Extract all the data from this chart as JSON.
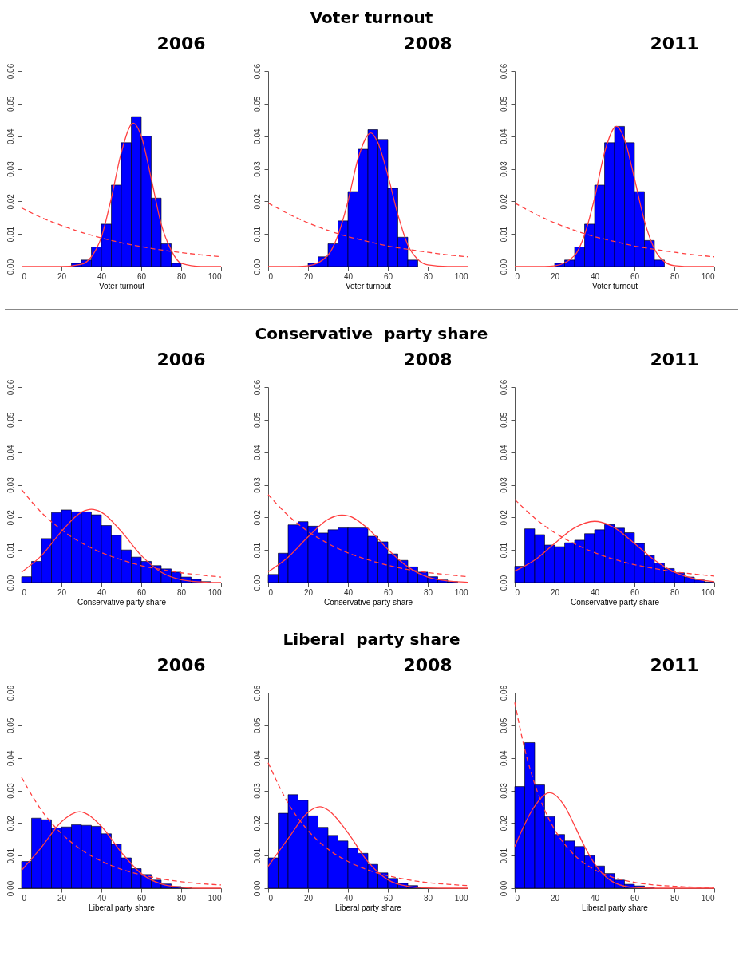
{
  "chart_data": [
    {
      "type": "other",
      "title": "Voter turnout"
    },
    {
      "type": "histogram",
      "title": "2006",
      "xlabel": "Voter turnout",
      "xlim": [
        0,
        100
      ],
      "xticks": [
        0,
        20,
        40,
        60,
        80,
        100
      ],
      "ylim": [
        0,
        0.06
      ],
      "yticks": [
        {
          "value": 0,
          "label": "0.00"
        },
        {
          "value": 0.01,
          "label": "0.01"
        },
        {
          "value": 0.02,
          "label": "0.02"
        },
        {
          "value": 0.03,
          "label": "0.03"
        },
        {
          "value": 0.04,
          "label": "0.04"
        },
        {
          "value": 0.05,
          "label": "0.05"
        },
        {
          "value": 0.06,
          "label": "0.06"
        }
      ],
      "series": [
        {
          "type": "histogram",
          "color": "#0000ff",
          "bins": [
            0,
            5,
            10,
            15,
            20,
            25,
            30,
            35,
            40,
            45,
            50,
            55,
            60,
            65,
            70,
            75,
            80,
            85,
            90,
            95,
            100
          ],
          "values": [
            0,
            0,
            0,
            0,
            0,
            0.001,
            0.002,
            0.006,
            0.013,
            0.025,
            0.038,
            0.046,
            0.04,
            0.021,
            0.007,
            0.001,
            0,
            0,
            0,
            0
          ]
        },
        {
          "type": "line",
          "color": "#ff4040",
          "line_style": "solid",
          "x": [
            0,
            20,
            30,
            35,
            40,
            45,
            50,
            56,
            60,
            65,
            70,
            75,
            80,
            90,
            100
          ],
          "values": [
            0,
            0,
            0.0007,
            0.003,
            0.009,
            0.021,
            0.035,
            0.044,
            0.04,
            0.027,
            0.013,
            0.005,
            0.001,
            0,
            0
          ]
        },
        {
          "type": "line",
          "color": "#ff4040",
          "line_style": "dashed",
          "x": [
            0,
            10,
            20,
            30,
            40,
            50,
            60,
            70,
            80,
            90,
            100
          ],
          "values": [
            0.018,
            0.015,
            0.0126,
            0.0105,
            0.0088,
            0.0073,
            0.0061,
            0.0051,
            0.0043,
            0.0036,
            0.003
          ]
        }
      ]
    },
    {
      "type": "histogram",
      "title": "2008",
      "xlabel": "Voter turnout",
      "xlim": [
        0,
        100
      ],
      "xticks": [
        0,
        20,
        40,
        60,
        80,
        100
      ],
      "ylim": [
        0,
        0.06
      ],
      "yticks": [
        {
          "value": 0,
          "label": "0.00"
        },
        {
          "value": 0.01,
          "label": "0.01"
        },
        {
          "value": 0.02,
          "label": "0.02"
        },
        {
          "value": 0.03,
          "label": "0.03"
        },
        {
          "value": 0.04,
          "label": "0.04"
        },
        {
          "value": 0.05,
          "label": "0.05"
        },
        {
          "value": 0.06,
          "label": "0.06"
        }
      ],
      "series": [
        {
          "type": "histogram",
          "color": "#0000ff",
          "bins": [
            0,
            5,
            10,
            15,
            20,
            25,
            30,
            35,
            40,
            45,
            50,
            55,
            60,
            65,
            70,
            75,
            80,
            85,
            90,
            95,
            100
          ],
          "values": [
            0,
            0,
            0,
            0,
            0.001,
            0.003,
            0.007,
            0.014,
            0.023,
            0.036,
            0.042,
            0.039,
            0.024,
            0.009,
            0.002,
            0,
            0,
            0,
            0,
            0
          ]
        },
        {
          "type": "line",
          "color": "#ff4040",
          "line_style": "solid",
          "x": [
            0,
            15,
            20,
            30,
            35,
            40,
            45,
            51.5,
            55,
            60,
            65,
            70,
            75,
            80,
            90,
            100
          ],
          "values": [
            0,
            0,
            0.0002,
            0.0035,
            0.0096,
            0.02,
            0.033,
            0.041,
            0.038,
            0.028,
            0.016,
            0.0066,
            0.0022,
            0.0005,
            0,
            0
          ]
        },
        {
          "type": "line",
          "color": "#ff4040",
          "line_style": "dashed",
          "x": [
            0,
            10,
            20,
            30,
            40,
            50,
            60,
            70,
            80,
            90,
            100
          ],
          "values": [
            0.0195,
            0.0162,
            0.0134,
            0.0111,
            0.0092,
            0.0077,
            0.0063,
            0.0053,
            0.0044,
            0.0036,
            0.003
          ]
        }
      ]
    },
    {
      "type": "histogram",
      "title": "2011",
      "xlabel": "Voter turnout",
      "xlim": [
        0,
        100
      ],
      "xticks": [
        0,
        20,
        40,
        60,
        80,
        100
      ],
      "ylim": [
        0,
        0.06
      ],
      "yticks": [
        {
          "value": 0,
          "label": "0.00"
        },
        {
          "value": 0.01,
          "label": "0.01"
        },
        {
          "value": 0.02,
          "label": "0.02"
        },
        {
          "value": 0.03,
          "label": "0.03"
        },
        {
          "value": 0.04,
          "label": "0.04"
        },
        {
          "value": 0.05,
          "label": "0.05"
        },
        {
          "value": 0.06,
          "label": "0.06"
        }
      ],
      "series": [
        {
          "type": "histogram",
          "color": "#0000ff",
          "bins": [
            0,
            5,
            10,
            15,
            20,
            25,
            30,
            35,
            40,
            45,
            50,
            55,
            60,
            65,
            70,
            75,
            80,
            85,
            90,
            95,
            100
          ],
          "values": [
            0,
            0,
            0,
            0,
            0.001,
            0.002,
            0.006,
            0.013,
            0.025,
            0.038,
            0.043,
            0.038,
            0.023,
            0.008,
            0.002,
            0,
            0,
            0,
            0,
            0
          ]
        },
        {
          "type": "line",
          "color": "#ff4040",
          "line_style": "solid",
          "x": [
            0,
            15,
            20,
            30,
            35,
            40,
            45,
            51,
            55,
            60,
            65,
            70,
            75,
            80,
            90,
            100
          ],
          "values": [
            0,
            0,
            0.0002,
            0.0034,
            0.0098,
            0.021,
            0.035,
            0.043,
            0.039,
            0.027,
            0.014,
            0.0054,
            0.0015,
            0.0003,
            0,
            0
          ]
        },
        {
          "type": "line",
          "color": "#ff4040",
          "line_style": "dashed",
          "x": [
            0,
            10,
            20,
            30,
            40,
            50,
            60,
            70,
            80,
            90,
            100
          ],
          "values": [
            0.0195,
            0.0162,
            0.0134,
            0.0111,
            0.0092,
            0.0077,
            0.0063,
            0.0053,
            0.0044,
            0.0036,
            0.003
          ]
        }
      ]
    },
    {
      "type": "other",
      "title": "Conservative  party share"
    },
    {
      "type": "histogram",
      "title": "2006",
      "xlabel": "Conservative party share",
      "xlim": [
        0,
        100
      ],
      "xticks": [
        0,
        20,
        40,
        60,
        80,
        100
      ],
      "ylim": [
        0,
        0.06
      ],
      "yticks": [
        {
          "value": 0,
          "label": "0.00"
        },
        {
          "value": 0.01,
          "label": "0.01"
        },
        {
          "value": 0.02,
          "label": "0.02"
        },
        {
          "value": 0.03,
          "label": "0.03"
        },
        {
          "value": 0.04,
          "label": "0.04"
        },
        {
          "value": 0.05,
          "label": "0.05"
        },
        {
          "value": 0.06,
          "label": "0.06"
        }
      ],
      "series": [
        {
          "type": "histogram",
          "color": "#0000ff",
          "bins": [
            0,
            5,
            10,
            15,
            20,
            25,
            30,
            35,
            40,
            45,
            50,
            55,
            60,
            65,
            70,
            75,
            80,
            85,
            90,
            95,
            100
          ],
          "values": [
            0.0018,
            0.0065,
            0.0135,
            0.0215,
            0.0223,
            0.0217,
            0.0217,
            0.0208,
            0.0175,
            0.0145,
            0.01,
            0.0078,
            0.0065,
            0.0052,
            0.0042,
            0.0032,
            0.0017,
            0.001,
            0.0003,
            0
          ]
        },
        {
          "type": "line",
          "color": "#ff4040",
          "line_style": "solid",
          "x": [
            0,
            10,
            20,
            30,
            35,
            40,
            50,
            60,
            70,
            80,
            90,
            100
          ],
          "values": [
            0.0032,
            0.0083,
            0.0157,
            0.0216,
            0.0225,
            0.0216,
            0.0157,
            0.0083,
            0.0032,
            0.0009,
            0.0002,
            0
          ]
        },
        {
          "type": "line",
          "color": "#ff4040",
          "line_style": "dashed",
          "x": [
            0,
            10,
            20,
            30,
            40,
            50,
            60,
            70,
            80,
            90,
            100
          ],
          "values": [
            0.0285,
            0.0215,
            0.0162,
            0.0122,
            0.0092,
            0.007,
            0.0052,
            0.004,
            0.003,
            0.0023,
            0.0017
          ]
        }
      ]
    },
    {
      "type": "histogram",
      "title": "2008",
      "xlabel": "Conservative party share",
      "xlim": [
        0,
        100
      ],
      "xticks": [
        0,
        20,
        40,
        60,
        80,
        100
      ],
      "ylim": [
        0,
        0.06
      ],
      "yticks": [
        {
          "value": 0,
          "label": "0.00"
        },
        {
          "value": 0.01,
          "label": "0.01"
        },
        {
          "value": 0.02,
          "label": "0.02"
        },
        {
          "value": 0.03,
          "label": "0.03"
        },
        {
          "value": 0.04,
          "label": "0.04"
        },
        {
          "value": 0.05,
          "label": "0.05"
        },
        {
          "value": 0.06,
          "label": "0.06"
        }
      ],
      "series": [
        {
          "type": "histogram",
          "color": "#0000ff",
          "bins": [
            0,
            5,
            10,
            15,
            20,
            25,
            30,
            35,
            40,
            45,
            50,
            55,
            60,
            65,
            70,
            75,
            80,
            85,
            90,
            95,
            100
          ],
          "values": [
            0.0025,
            0.009,
            0.0177,
            0.0187,
            0.0173,
            0.0152,
            0.0162,
            0.0168,
            0.0168,
            0.0168,
            0.0142,
            0.0125,
            0.0088,
            0.0068,
            0.0048,
            0.0032,
            0.0018,
            0.0008,
            0.0003,
            0
          ]
        },
        {
          "type": "line",
          "color": "#ff4040",
          "line_style": "solid",
          "x": [
            0,
            10,
            20,
            30,
            37,
            40,
            50,
            60,
            70,
            80,
            90,
            100
          ],
          "values": [
            0.0033,
            0.0078,
            0.014,
            0.0194,
            0.0207,
            0.0205,
            0.0166,
            0.0102,
            0.0048,
            0.0017,
            0.0005,
            0.0001
          ]
        },
        {
          "type": "line",
          "color": "#ff4040",
          "line_style": "dashed",
          "x": [
            0,
            10,
            20,
            30,
            40,
            50,
            60,
            70,
            80,
            90,
            100
          ],
          "values": [
            0.027,
            0.0206,
            0.0157,
            0.012,
            0.0091,
            0.007,
            0.0053,
            0.004,
            0.0031,
            0.0024,
            0.0018
          ]
        }
      ]
    },
    {
      "type": "histogram",
      "title": "2011",
      "xlabel": "Conservative party share",
      "xlim": [
        0,
        100
      ],
      "xticks": [
        0,
        20,
        40,
        60,
        80,
        100
      ],
      "ylim": [
        0,
        0.06
      ],
      "yticks": [
        {
          "value": 0,
          "label": "0.00"
        },
        {
          "value": 0.01,
          "label": "0.01"
        },
        {
          "value": 0.02,
          "label": "0.02"
        },
        {
          "value": 0.03,
          "label": "0.03"
        },
        {
          "value": 0.04,
          "label": "0.04"
        },
        {
          "value": 0.05,
          "label": "0.05"
        },
        {
          "value": 0.06,
          "label": "0.06"
        }
      ],
      "series": [
        {
          "type": "histogram",
          "color": "#0000ff",
          "bins": [
            0,
            5,
            10,
            15,
            20,
            25,
            30,
            35,
            40,
            45,
            50,
            55,
            60,
            65,
            70,
            75,
            80,
            85,
            90,
            95,
            100
          ],
          "values": [
            0.005,
            0.0165,
            0.0147,
            0.0115,
            0.011,
            0.0122,
            0.013,
            0.015,
            0.0162,
            0.0178,
            0.0167,
            0.0153,
            0.012,
            0.0083,
            0.006,
            0.0043,
            0.003,
            0.0017,
            0.0008,
            0.0002
          ]
        },
        {
          "type": "line",
          "color": "#ff4040",
          "line_style": "solid",
          "x": [
            0,
            10,
            20,
            30,
            40,
            50,
            60,
            70,
            80,
            90,
            100
          ],
          "values": [
            0.0035,
            0.0069,
            0.012,
            0.0168,
            0.0188,
            0.0168,
            0.012,
            0.0069,
            0.0032,
            0.0012,
            0.0003
          ]
        },
        {
          "type": "line",
          "color": "#ff4040",
          "line_style": "dashed",
          "x": [
            0,
            10,
            20,
            30,
            40,
            50,
            60,
            70,
            80,
            90,
            100
          ],
          "values": [
            0.0255,
            0.0198,
            0.0153,
            0.0119,
            0.0092,
            0.0071,
            0.0055,
            0.0043,
            0.0033,
            0.0026,
            0.002
          ]
        }
      ]
    },
    {
      "type": "other",
      "title": "Liberal  party share"
    },
    {
      "type": "histogram",
      "title": "2006",
      "xlabel": "Liberal party share",
      "xlim": [
        0,
        100
      ],
      "xticks": [
        0,
        20,
        40,
        60,
        80,
        100
      ],
      "ylim": [
        0,
        0.06
      ],
      "yticks": [
        {
          "value": 0,
          "label": "0.00"
        },
        {
          "value": 0.01,
          "label": "0.01"
        },
        {
          "value": 0.02,
          "label": "0.02"
        },
        {
          "value": 0.03,
          "label": "0.03"
        },
        {
          "value": 0.04,
          "label": "0.04"
        },
        {
          "value": 0.05,
          "label": "0.05"
        },
        {
          "value": 0.06,
          "label": "0.06"
        }
      ],
      "series": [
        {
          "type": "histogram",
          "color": "#0000ff",
          "bins": [
            0,
            5,
            10,
            15,
            20,
            25,
            30,
            35,
            40,
            45,
            50,
            55,
            60,
            65,
            70,
            75,
            80,
            85,
            90,
            95,
            100
          ],
          "values": [
            0.0082,
            0.0215,
            0.021,
            0.0185,
            0.0188,
            0.0195,
            0.0193,
            0.019,
            0.0167,
            0.0135,
            0.0093,
            0.006,
            0.0042,
            0.0025,
            0.0013,
            0.0005,
            0.0002,
            0,
            0,
            0
          ]
        },
        {
          "type": "line",
          "color": "#ff4040",
          "line_style": "solid",
          "x": [
            0,
            10,
            20,
            29,
            40,
            50,
            60,
            70,
            80,
            90,
            100
          ],
          "values": [
            0.0055,
            0.0126,
            0.0204,
            0.0235,
            0.019,
            0.011,
            0.0045,
            0.0013,
            0.0003,
            0,
            0
          ]
        },
        {
          "type": "line",
          "color": "#ff4040",
          "line_style": "dashed",
          "x": [
            0,
            10,
            20,
            30,
            40,
            50,
            60,
            70,
            80,
            90,
            100
          ],
          "values": [
            0.034,
            0.0239,
            0.0168,
            0.0118,
            0.0083,
            0.0058,
            0.0041,
            0.0029,
            0.002,
            0.0014,
            0.001
          ]
        }
      ]
    },
    {
      "type": "histogram",
      "title": "2008",
      "xlabel": "Liberal party share",
      "xlim": [
        0,
        100
      ],
      "xticks": [
        0,
        20,
        40,
        60,
        80,
        100
      ],
      "ylim": [
        0,
        0.06
      ],
      "yticks": [
        {
          "value": 0,
          "label": "0.00"
        },
        {
          "value": 0.01,
          "label": "0.01"
        },
        {
          "value": 0.02,
          "label": "0.02"
        },
        {
          "value": 0.03,
          "label": "0.03"
        },
        {
          "value": 0.04,
          "label": "0.04"
        },
        {
          "value": 0.05,
          "label": "0.05"
        },
        {
          "value": 0.06,
          "label": "0.06"
        }
      ],
      "series": [
        {
          "type": "histogram",
          "color": "#0000ff",
          "bins": [
            0,
            5,
            10,
            15,
            20,
            25,
            30,
            35,
            40,
            45,
            50,
            55,
            60,
            65,
            70,
            75,
            80,
            85,
            90,
            95,
            100
          ],
          "values": [
            0.0093,
            0.023,
            0.0287,
            0.027,
            0.0222,
            0.0187,
            0.0162,
            0.0145,
            0.0123,
            0.0107,
            0.0073,
            0.0047,
            0.003,
            0.0015,
            0.0008,
            0.0003,
            null,
            0,
            0,
            0
          ]
        },
        {
          "type": "line",
          "color": "#ff4040",
          "line_style": "solid",
          "x": [
            0,
            10,
            20,
            26,
            30,
            40,
            50,
            60,
            70,
            80,
            90,
            100
          ],
          "values": [
            0.0067,
            0.0152,
            0.0233,
            0.025,
            0.024,
            0.017,
            0.0081,
            0.0026,
            0.0006,
            0.0001,
            0,
            0
          ]
        },
        {
          "type": "line",
          "color": "#ff4040",
          "line_style": "dashed",
          "x": [
            0,
            10,
            20,
            30,
            40,
            50,
            60,
            70,
            80,
            90,
            100
          ],
          "values": [
            0.0385,
            0.0261,
            0.0177,
            0.012,
            0.0082,
            0.0056,
            0.0038,
            0.0026,
            0.0017,
            0.0012,
            0.0008
          ]
        }
      ]
    },
    {
      "type": "histogram",
      "title": "2011",
      "xlabel": "Liberal party share",
      "xlim": [
        0,
        100
      ],
      "xticks": [
        0,
        20,
        40,
        60,
        80,
        100
      ],
      "ylim": [
        0,
        0.06
      ],
      "yticks": [
        {
          "value": 0,
          "label": "0.00"
        },
        {
          "value": 0.01,
          "label": "0.01"
        },
        {
          "value": 0.02,
          "label": "0.02"
        },
        {
          "value": 0.03,
          "label": "0.03"
        },
        {
          "value": 0.04,
          "label": "0.04"
        },
        {
          "value": 0.05,
          "label": "0.05"
        },
        {
          "value": 0.06,
          "label": "0.06"
        }
      ],
      "series": [
        {
          "type": "histogram",
          "color": "#0000ff",
          "bins": [
            0,
            5,
            10,
            15,
            20,
            25,
            30,
            35,
            40,
            45,
            50,
            55,
            60,
            65,
            70,
            75,
            80,
            85,
            90,
            95,
            100
          ],
          "values": [
            0.0312,
            0.0447,
            0.0317,
            0.022,
            0.0165,
            0.0145,
            0.0128,
            0.01,
            0.0068,
            0.0045,
            0.0025,
            0.0012,
            0.0007,
            0.0003,
            null,
            0,
            0,
            0,
            0,
            0
          ]
        },
        {
          "type": "line",
          "color": "#ff4040",
          "line_style": "solid",
          "x": [
            0,
            10,
            17.5,
            25,
            30,
            35,
            40,
            50,
            60,
            70,
            80,
            90,
            100
          ],
          "values": [
            0.0128,
            0.0252,
            0.0293,
            0.0252,
            0.0192,
            0.0128,
            0.0075,
            0.0017,
            0.0002,
            0,
            0,
            0,
            0
          ]
        },
        {
          "type": "line",
          "color": "#ff4040",
          "line_style": "dashed",
          "x": [
            0,
            5,
            10,
            15,
            20,
            30,
            40,
            50,
            60,
            70,
            80,
            90,
            100
          ],
          "values": [
            0.057,
            0.0427,
            0.032,
            0.024,
            0.018,
            0.0101,
            0.0057,
            0.0032,
            0.0018,
            0.001,
            0.0006,
            0.0003,
            0.0002
          ]
        }
      ]
    }
  ]
}
